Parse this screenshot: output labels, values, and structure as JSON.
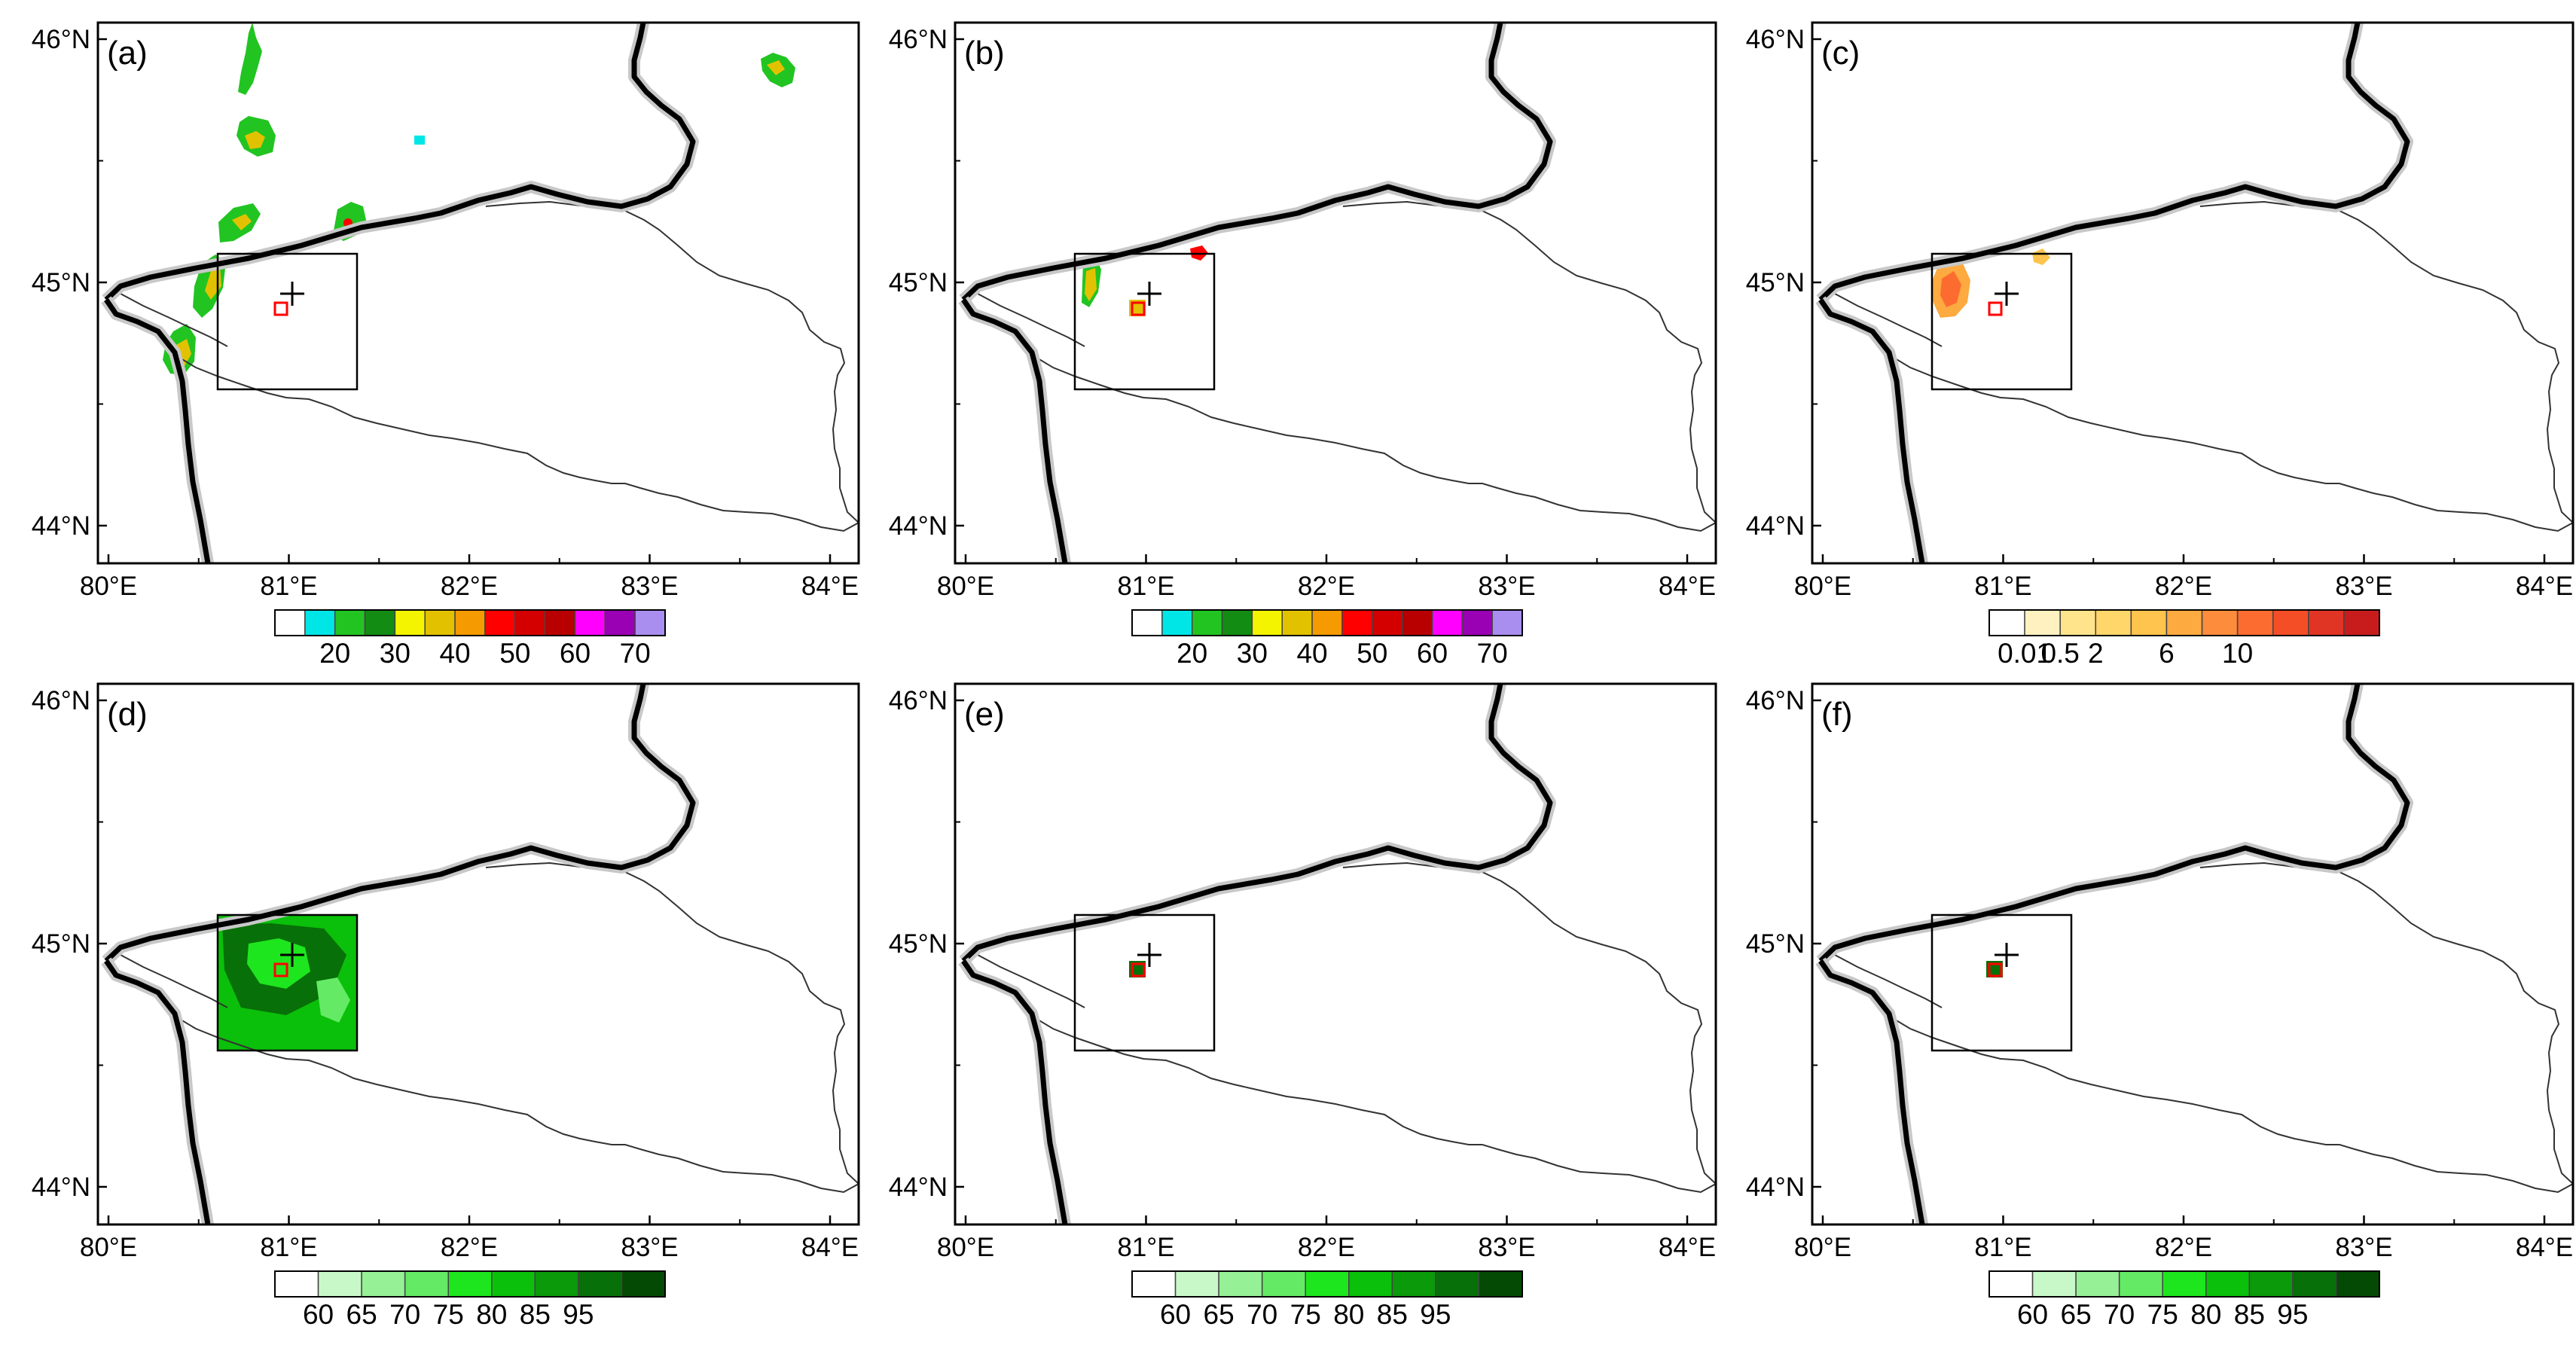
{
  "figure": {
    "lat_ticks": [
      "46°N",
      "45°N",
      "44°N"
    ],
    "lon_ticks": [
      "80°E",
      "81°E",
      "82°E",
      "83°E",
      "84°E"
    ],
    "panels": [
      {
        "label": "(a)",
        "colorbar": "reflectivity"
      },
      {
        "label": "(b)",
        "colorbar": "reflectivity"
      },
      {
        "label": "(c)",
        "colorbar": "precip"
      },
      {
        "label": "(d)",
        "colorbar": "humidity"
      },
      {
        "label": "(e)",
        "colorbar": "humidity"
      },
      {
        "label": "(f)",
        "colorbar": "humidity"
      }
    ]
  },
  "colorbars": {
    "reflectivity": {
      "colors": [
        "#ffffff",
        "#00e6e6",
        "#22c422",
        "#128c12",
        "#f4f400",
        "#e2c200",
        "#f59a00",
        "#ff0000",
        "#d40000",
        "#b80000",
        "#ff00ff",
        "#9a00b4",
        "#a98ef0"
      ],
      "labels": [
        "20",
        "30",
        "40",
        "50",
        "60",
        "70"
      ]
    },
    "precip": {
      "colors": [
        "#ffffff",
        "#fff2c0",
        "#ffe48c",
        "#fed66a",
        "#fec44e",
        "#fdaa40",
        "#fd8c3c",
        "#fc6c30",
        "#f44e26",
        "#e03424",
        "#c81c1c"
      ],
      "labels": [
        "0.01",
        "0.5",
        "2",
        "6",
        "10"
      ]
    },
    "humidity": {
      "colors": [
        "#ffffff",
        "#c8f8c8",
        "#96f096",
        "#64ea64",
        "#1ee61e",
        "#0ac00a",
        "#0a9a0a",
        "#087008",
        "#044a04"
      ],
      "labels": [
        "60",
        "65",
        "70",
        "75",
        "80",
        "85",
        "95"
      ]
    }
  }
}
